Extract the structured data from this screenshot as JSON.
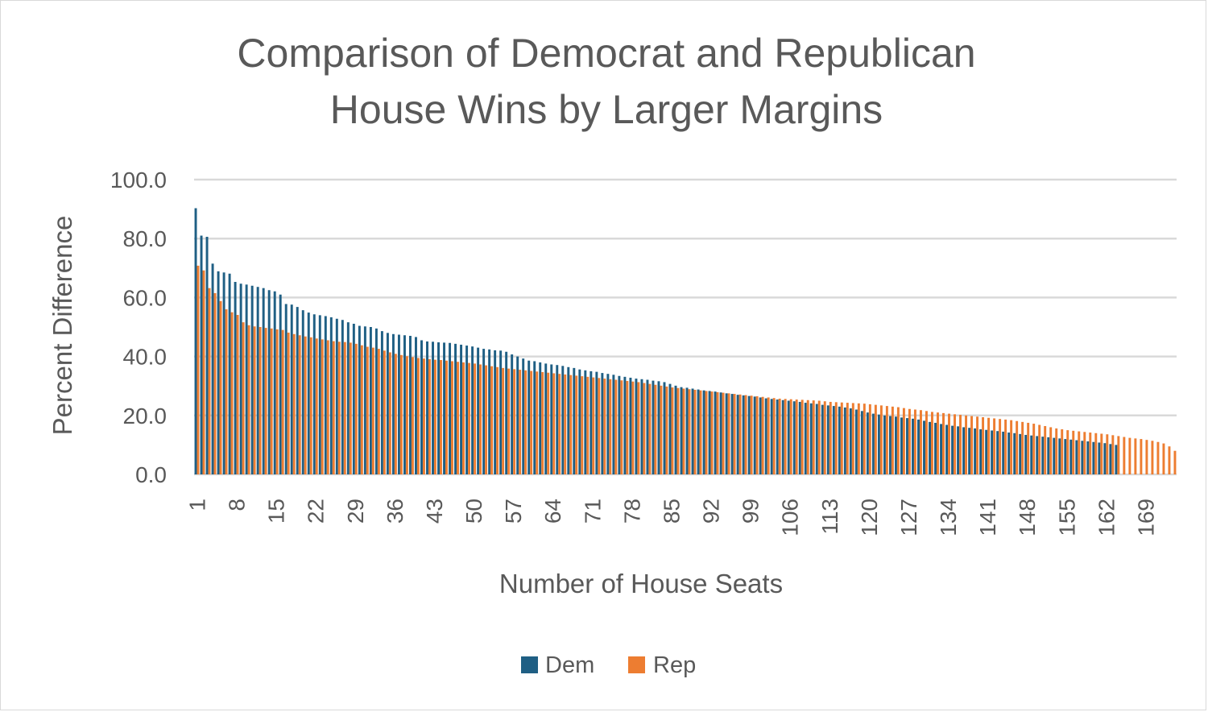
{
  "chart_data": {
    "type": "bar",
    "title_lines": [
      "Comparison of Democrat and Republican",
      "House Wins by Larger Margins"
    ],
    "xlabel": "Number of House Seats",
    "ylabel": "Percent Difference",
    "ylim": [
      0,
      100
    ],
    "y_ticks": [
      "0.0",
      "20.0",
      "40.0",
      "60.0",
      "80.0",
      "100.0"
    ],
    "x_ticks": [
      "1",
      "8",
      "15",
      "22",
      "29",
      "36",
      "43",
      "50",
      "57",
      "64",
      "71",
      "78",
      "85",
      "92",
      "99",
      "106",
      "113",
      "120",
      "127",
      "134",
      "141",
      "148",
      "155",
      "162",
      "169"
    ],
    "category_count": 174,
    "grid": true,
    "legend_position": "bottom",
    "series": [
      {
        "name": "Dem",
        "color": "#1f5f84",
        "values": [
          90.3,
          81.0,
          80.6,
          71.5,
          68.9,
          68.5,
          68.1,
          65.3,
          64.7,
          64.4,
          64.0,
          63.6,
          63.2,
          62.5,
          62.1,
          61.0,
          57.8,
          57.6,
          56.8,
          55.7,
          54.9,
          54.3,
          54.0,
          53.7,
          53.3,
          52.8,
          52.4,
          51.6,
          51.1,
          50.4,
          50.2,
          50.0,
          49.5,
          48.6,
          48.0,
          47.6,
          47.4,
          47.2,
          47.0,
          46.6,
          45.5,
          45.1,
          45.0,
          44.8,
          44.7,
          44.6,
          44.3,
          44.0,
          43.7,
          43.4,
          43.0,
          42.6,
          42.4,
          42.1,
          42.0,
          41.6,
          40.7,
          40.0,
          39.3,
          38.6,
          38.4,
          38.0,
          37.6,
          37.3,
          37.1,
          36.8,
          36.4,
          36.1,
          35.6,
          35.3,
          35.0,
          34.8,
          34.4,
          34.1,
          33.8,
          33.4,
          33.1,
          32.8,
          32.5,
          32.3,
          32.1,
          31.8,
          31.6,
          31.3,
          30.7,
          30.1,
          29.6,
          29.4,
          29.1,
          28.8,
          28.5,
          28.3,
          28.1,
          27.8,
          27.5,
          27.3,
          27.0,
          26.8,
          26.6,
          26.4,
          26.1,
          25.8,
          25.6,
          25.4,
          25.2,
          25.0,
          24.8,
          24.6,
          24.3,
          24.1,
          23.9,
          23.6,
          23.4,
          23.2,
          23.0,
          22.7,
          22.4,
          22.0,
          21.5,
          21.0,
          20.6,
          20.3,
          20.0,
          19.8,
          19.6,
          19.3,
          19.1,
          18.9,
          18.6,
          18.2,
          17.8,
          17.5,
          17.1,
          16.8,
          16.5,
          16.3,
          16.0,
          15.8,
          15.6,
          15.3,
          15.1,
          14.9,
          14.7,
          14.5,
          14.2,
          14.0,
          13.7,
          13.4,
          13.2,
          13.0,
          12.8,
          12.6,
          12.4,
          12.2,
          12.0,
          11.8,
          11.6,
          11.4,
          11.2,
          11.0,
          10.8,
          10.6,
          10.3,
          10.0,
          null,
          null,
          null,
          null,
          null,
          null,
          null,
          null,
          null,
          null,
          null,
          null
        ]
      },
      {
        "name": "Rep",
        "color": "#ed7d31",
        "values": [
          70.8,
          69.2,
          63.2,
          61.5,
          58.8,
          56.0,
          55.0,
          54.1,
          51.6,
          50.6,
          50.2,
          50.0,
          49.7,
          49.5,
          49.2,
          49.0,
          48.1,
          47.6,
          47.2,
          46.8,
          46.5,
          46.1,
          45.8,
          45.5,
          45.2,
          45.0,
          44.9,
          44.7,
          44.3,
          43.8,
          43.3,
          43.0,
          42.6,
          42.0,
          41.4,
          40.9,
          40.5,
          40.1,
          39.8,
          39.5,
          39.3,
          39.1,
          38.9,
          38.8,
          38.6,
          38.4,
          38.2,
          38.0,
          37.8,
          37.6,
          37.3,
          37.0,
          36.7,
          36.4,
          36.1,
          35.9,
          35.7,
          35.5,
          35.3,
          35.1,
          34.9,
          34.7,
          34.5,
          34.3,
          34.1,
          33.9,
          33.7,
          33.5,
          33.3,
          33.1,
          32.9,
          32.7,
          32.5,
          32.3,
          32.1,
          31.9,
          31.7,
          31.5,
          31.3,
          31.0,
          30.7,
          30.4,
          30.1,
          29.8,
          29.5,
          29.3,
          29.1,
          28.9,
          28.7,
          28.5,
          28.3,
          28.1,
          27.9,
          27.7,
          27.5,
          27.3,
          27.1,
          26.9,
          26.7,
          26.5,
          26.3,
          26.1,
          25.9,
          25.7,
          25.6,
          25.5,
          25.4,
          25.3,
          25.2,
          25.1,
          25.0,
          24.8,
          24.6,
          24.5,
          24.4,
          24.3,
          24.2,
          24.1,
          24.0,
          23.8,
          23.6,
          23.4,
          23.2,
          23.0,
          22.8,
          22.5,
          22.2,
          22.0,
          21.8,
          21.5,
          21.2,
          21.0,
          20.8,
          20.6,
          20.4,
          20.2,
          20.0,
          19.8,
          19.6,
          19.4,
          19.2,
          19.0,
          18.8,
          18.6,
          18.4,
          18.1,
          17.8,
          17.5,
          17.2,
          16.8,
          16.4,
          16.0,
          15.6,
          15.3,
          15.0,
          14.8,
          14.6,
          14.4,
          14.2,
          14.0,
          13.8,
          13.6,
          13.3,
          13.0,
          12.7,
          12.4,
          12.2,
          12.0,
          11.7,
          11.4,
          11.0,
          10.5,
          9.5,
          8.0
        ]
      }
    ]
  }
}
